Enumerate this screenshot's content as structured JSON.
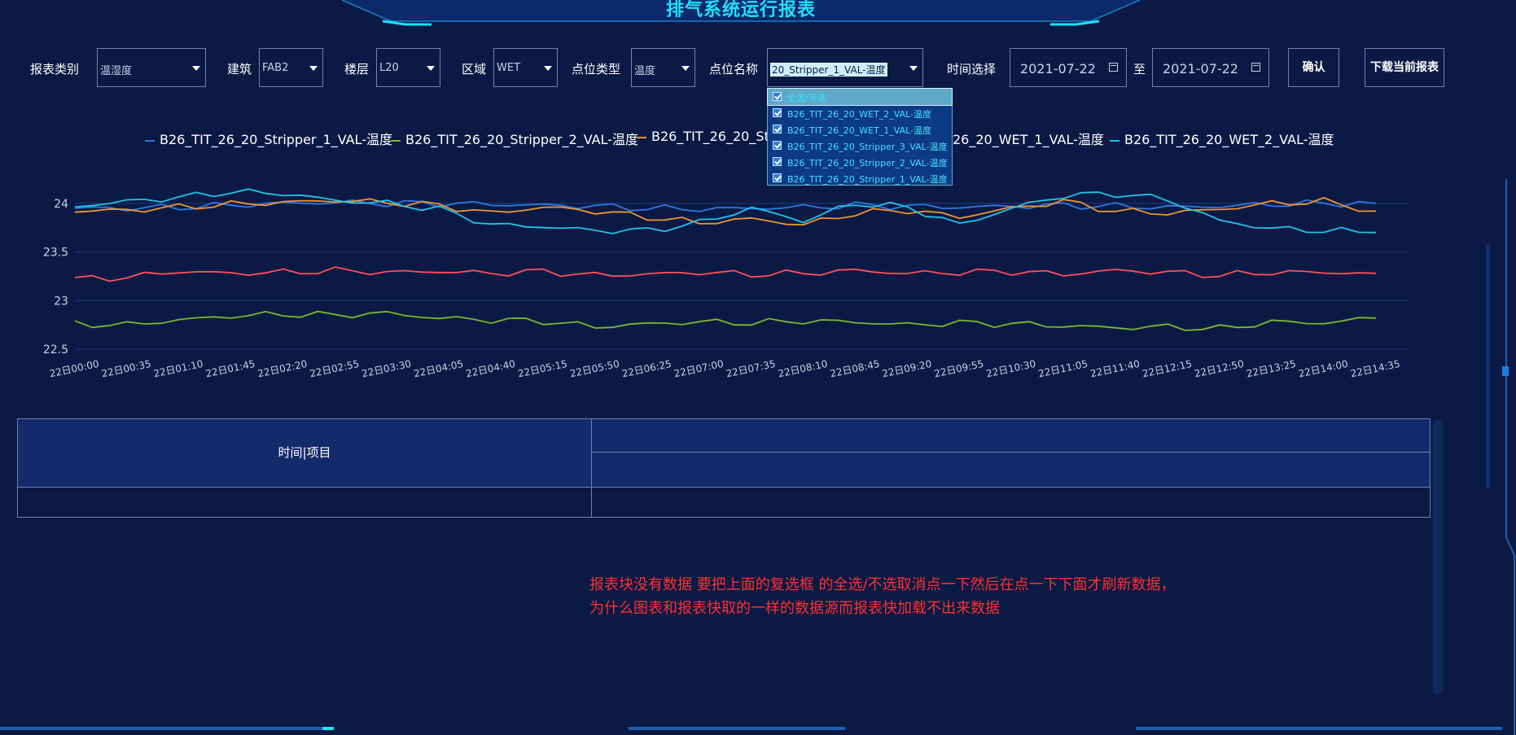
{
  "page": {
    "title": "排气系统运行报表"
  },
  "colors": {
    "background": "#0b1a45",
    "accent": "#1ee0ff",
    "border": "#6f82ad",
    "annotation": "#ff3030"
  },
  "filters": {
    "report_type": {
      "label": "报表类别",
      "value": "温湿度"
    },
    "building": {
      "label": "建筑",
      "value": "FAB2"
    },
    "floor": {
      "label": "楼层",
      "value": "L20"
    },
    "area": {
      "label": "区域",
      "value": "WET"
    },
    "point_type": {
      "label": "点位类型",
      "value": "温度"
    },
    "point_name": {
      "label": "点位名称",
      "value": "20_Stripper_1_VAL-温度"
    },
    "time": {
      "label": "时间选择",
      "start": "2021-07-22",
      "separator": "至",
      "end": "2021-07-22"
    },
    "confirm_label": "确认",
    "download_label": "下载当前报表"
  },
  "dropdown": {
    "items": [
      {
        "label": "全选/不选",
        "checked": true
      },
      {
        "label": "B26_TIT_26_20_WET_2_VAL-温度",
        "checked": true
      },
      {
        "label": "B26_TIT_26_20_WET_1_VAL-温度",
        "checked": true
      },
      {
        "label": "B26_TIT_26_20_Stripper_3_VAL-温度",
        "checked": true
      },
      {
        "label": "B26_TIT_26_20_Stripper_2_VAL-温度",
        "checked": true
      },
      {
        "label": "B26_TIT_26_20_Stripper_1_VAL-温度",
        "checked": true
      }
    ]
  },
  "legend": {
    "items": [
      {
        "label": "B26_TIT_26_20_Stripper_1_VAL-温度",
        "color": "#2f78e0"
      },
      {
        "label": "B26_TIT_26_20_Stripper_2_VAL-温度",
        "color": "#7cb82f"
      },
      {
        "label": "B26_TIT_26_20_Str",
        "color": "#f0952e"
      },
      {
        "label": "26_20_WET_1_VAL-温度",
        "color": "#ff4f5a"
      },
      {
        "label": "B26_TIT_26_20_WET_2_VAL-温度",
        "color": "#22c3e8"
      }
    ]
  },
  "chart_data": {
    "type": "line",
    "x": [
      "22日00:00",
      "22日00:35",
      "22日01:10",
      "22日01:45",
      "22日02:20",
      "22日02:55",
      "22日03:30",
      "22日04:05",
      "22日04:40",
      "22日05:15",
      "22日05:50",
      "22日06:25",
      "22日07:00",
      "22日07:35",
      "22日08:10",
      "22日08:45",
      "22日09:20",
      "22日09:55",
      "22日10:30",
      "22日11:05",
      "22日11:40",
      "22日12:15",
      "22日12:50",
      "22日13:25",
      "22日14:00",
      "22日14:35"
    ],
    "ylim": [
      22.5,
      24.25
    ],
    "yticks": [
      22.5,
      23,
      23.5,
      24
    ],
    "grid": true,
    "legend_position": "top-center",
    "series": [
      {
        "name": "B26_TIT_26_20_Stripper_1_VAL-温度",
        "color": "#2f78e0",
        "values": [
          23.95,
          23.95,
          23.96,
          23.98,
          24.0,
          24.01,
          24.0,
          24.0,
          23.99,
          23.98,
          23.97,
          23.95,
          23.94,
          23.95,
          23.96,
          23.98,
          23.97,
          23.96,
          23.97,
          23.98,
          23.97,
          23.96,
          23.97,
          23.99,
          24.0,
          24.0
        ]
      },
      {
        "name": "B26_TIT_26_20_Stripper_2_VAL-温度",
        "color": "#7cb82f",
        "values": [
          22.76,
          22.75,
          22.8,
          22.84,
          22.86,
          22.85,
          22.87,
          22.82,
          22.8,
          22.79,
          22.73,
          22.76,
          22.78,
          22.77,
          22.79,
          22.78,
          22.75,
          22.77,
          22.76,
          22.74,
          22.72,
          22.73,
          22.71,
          22.78,
          22.77,
          22.82
        ]
      },
      {
        "name": "B26_TIT_26_20_Stripper_3_VAL-温度",
        "color": "#f0952e",
        "values": [
          23.92,
          23.93,
          23.96,
          23.99,
          24.01,
          24.03,
          24.01,
          23.98,
          23.9,
          23.96,
          23.92,
          23.86,
          23.8,
          23.84,
          23.78,
          23.9,
          23.93,
          23.86,
          23.95,
          24.02,
          23.92,
          23.9,
          23.94,
          24.0,
          24.02,
          23.92
        ]
      },
      {
        "name": "B26_TIT_26_20_WET_1_VAL-温度",
        "color": "#ff4f5a",
        "values": [
          23.22,
          23.24,
          23.3,
          23.28,
          23.29,
          23.31,
          23.29,
          23.3,
          23.28,
          23.3,
          23.26,
          23.27,
          23.29,
          23.27,
          23.28,
          23.31,
          23.28,
          23.29,
          23.3,
          23.27,
          23.31,
          23.29,
          23.26,
          23.29,
          23.29,
          23.28
        ]
      },
      {
        "name": "B26_TIT_26_20_WET_2_VAL-温度",
        "color": "#22c3e8",
        "values": [
          23.97,
          24.02,
          24.06,
          24.12,
          24.1,
          24.03,
          24.0,
          23.94,
          23.78,
          23.76,
          23.72,
          23.72,
          23.8,
          23.95,
          23.82,
          24.0,
          23.96,
          23.78,
          23.95,
          24.08,
          24.1,
          24.04,
          23.82,
          23.74,
          23.72,
          23.7
        ]
      }
    ]
  },
  "table": {
    "header_left": "时间|项目"
  },
  "annotation": {
    "line1": "报表块没有数据  要把上面的复选框 的全选/不选取消点一下然后在点一下下面才刷新数据，",
    "line2": "为什么图表和报表快取的一样的数据源而报表快加载不出来数据"
  }
}
